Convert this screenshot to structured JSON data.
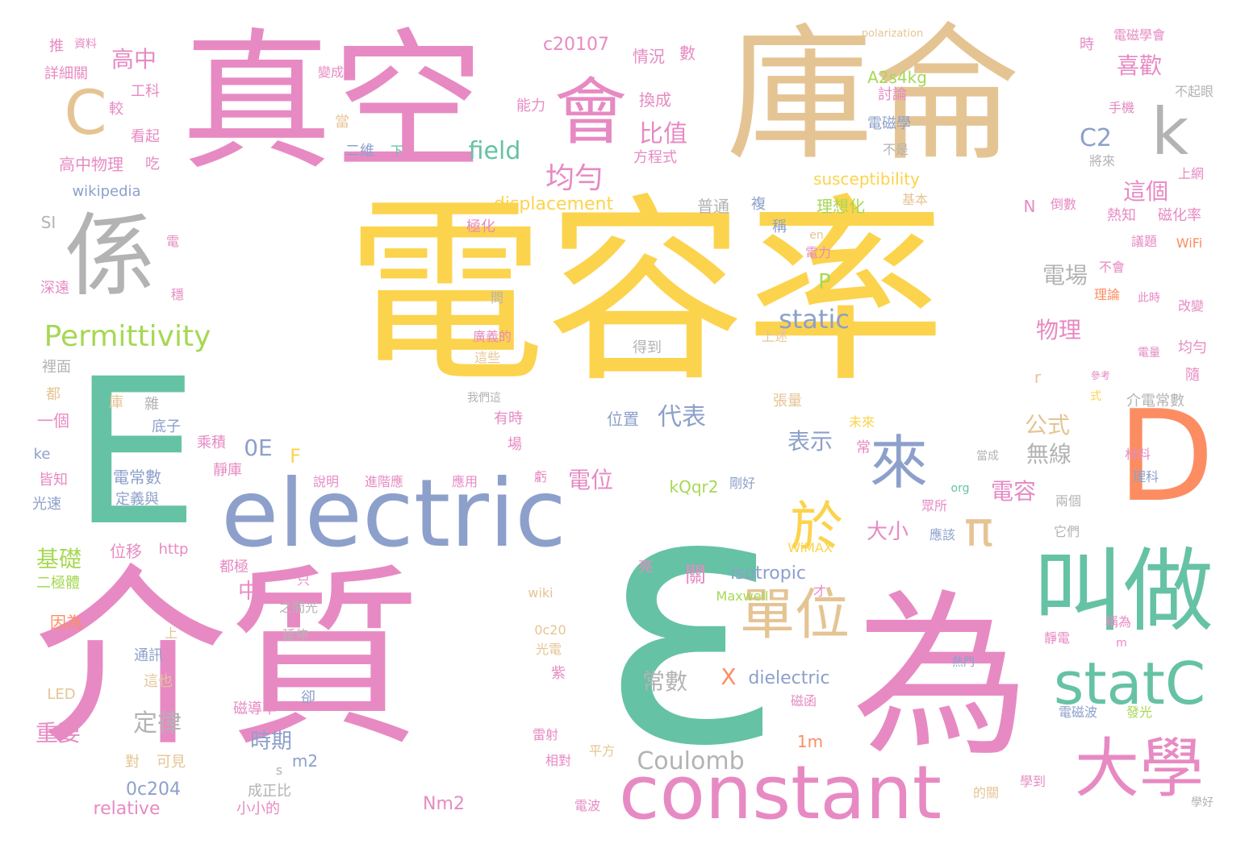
{
  "words": [
    {
      "text": "電容率",
      "color": "#fcd34d"
    },
    {
      "text": "ε",
      "color": "#66c2a5"
    },
    {
      "text": "介質",
      "color": "#e78ac3"
    },
    {
      "text": "真空",
      "color": "#e78ac3"
    },
    {
      "text": "庫侖",
      "color": "#e5c494"
    },
    {
      "text": "E",
      "color": "#66c2a5"
    },
    {
      "text": "electric",
      "color": "#8da0cb"
    },
    {
      "text": "為",
      "color": "#e78ac3"
    },
    {
      "text": "constant",
      "color": "#e78ac3"
    },
    {
      "text": "D",
      "color": "#fc8d62"
    },
    {
      "text": "係",
      "color": "#b3b3b3"
    },
    {
      "text": "叫做",
      "color": "#66c2a5"
    },
    {
      "text": "大學",
      "color": "#e78ac3"
    },
    {
      "text": "會",
      "color": "#e78ac3"
    },
    {
      "text": "statC",
      "color": "#66c2a5"
    },
    {
      "text": "於",
      "color": "#fcd34d"
    },
    {
      "text": "來",
      "color": "#8da0cb"
    },
    {
      "text": "單位",
      "color": "#e5c494"
    },
    {
      "text": "k",
      "color": "#b3b3b3"
    },
    {
      "text": "C",
      "color": "#e5c494"
    },
    {
      "text": "Permittivity",
      "color": "#a6d854"
    },
    {
      "text": "π",
      "color": "#e5c494"
    },
    {
      "text": "均勻",
      "color": "#e78ac3"
    },
    {
      "text": "比值",
      "color": "#e78ac3"
    },
    {
      "text": "field",
      "color": "#66c2a5"
    },
    {
      "text": "static",
      "color": "#8da0cb"
    },
    {
      "text": "Coulomb",
      "color": "#b3b3b3"
    },
    {
      "text": "代表",
      "color": "#8da0cb"
    },
    {
      "text": "位置",
      "color": "#8da0cb"
    },
    {
      "text": "高中",
      "color": "#e78ac3"
    },
    {
      "text": "喜歡",
      "color": "#e78ac3"
    },
    {
      "text": "C2",
      "color": "#8da0cb"
    },
    {
      "text": "這個",
      "color": "#e78ac3"
    },
    {
      "text": "物理",
      "color": "#e78ac3"
    },
    {
      "text": "電場",
      "color": "#b3b3b3"
    },
    {
      "text": "P",
      "color": "#a6d854"
    },
    {
      "text": "表示",
      "color": "#8da0cb"
    },
    {
      "text": "公式",
      "color": "#e5c494"
    },
    {
      "text": "無線",
      "color": "#b3b3b3"
    },
    {
      "text": "電容",
      "color": "#e78ac3"
    },
    {
      "text": "電位",
      "color": "#e78ac3"
    },
    {
      "text": "大小",
      "color": "#e78ac3"
    },
    {
      "text": "中",
      "color": "#e78ac3"
    },
    {
      "text": "關",
      "color": "#e78ac3"
    },
    {
      "text": "isotropic",
      "color": "#8da0cb"
    },
    {
      "text": "X",
      "color": "#fc8d62"
    },
    {
      "text": "dielectric",
      "color": "#8da0cb"
    },
    {
      "text": "常數",
      "color": "#b3b3b3"
    },
    {
      "text": "時期",
      "color": "#8da0cb"
    },
    {
      "text": "定律",
      "color": "#b3b3b3"
    },
    {
      "text": "重要",
      "color": "#e78ac3"
    },
    {
      "text": "基礎",
      "color": "#a6d854"
    },
    {
      "text": "0E",
      "color": "#8da0cb"
    },
    {
      "text": "F",
      "color": "#fcd34d"
    },
    {
      "text": "displacement",
      "color": "#fcd34d"
    },
    {
      "text": "susceptibility",
      "color": "#fcd34d"
    },
    {
      "text": "A2s4kg",
      "color": "#a6d854"
    },
    {
      "text": "c20107",
      "color": "#e78ac3"
    },
    {
      "text": "kQqr2",
      "color": "#a6d854"
    },
    {
      "text": "Nm2",
      "color": "#e78ac3"
    },
    {
      "text": "relative",
      "color": "#e78ac3"
    },
    {
      "text": "0c204",
      "color": "#8da0cb"
    },
    {
      "text": "m2",
      "color": "#8da0cb"
    },
    {
      "text": "1m",
      "color": "#fc8d62"
    },
    {
      "text": "wikipedia",
      "color": "#8da0cb"
    },
    {
      "text": "高中物理",
      "color": "#e78ac3"
    },
    {
      "text": "詳細關",
      "color": "#e78ac3"
    },
    {
      "text": "推",
      "color": "#e78ac3"
    },
    {
      "text": "資料",
      "color": "#e78ac3"
    },
    {
      "text": "工科",
      "color": "#e78ac3"
    },
    {
      "text": "較",
      "color": "#e78ac3"
    },
    {
      "text": "看起",
      "color": "#e78ac3"
    },
    {
      "text": "吃",
      "color": "#e78ac3"
    },
    {
      "text": "SI",
      "color": "#b3b3b3"
    },
    {
      "text": "深遠",
      "color": "#e78ac3"
    },
    {
      "text": "穩",
      "color": "#e78ac3"
    },
    {
      "text": "電",
      "color": "#e78ac3"
    },
    {
      "text": "裡面",
      "color": "#b3b3b3"
    },
    {
      "text": "都",
      "color": "#e5c494"
    },
    {
      "text": "庫",
      "color": "#e5c494"
    },
    {
      "text": "雜",
      "color": "#b3b3b3"
    },
    {
      "text": "一個",
      "color": "#e78ac3"
    },
    {
      "text": "底子",
      "color": "#8da0cb"
    },
    {
      "text": "乘積",
      "color": "#e78ac3"
    },
    {
      "text": "ke",
      "color": "#8da0cb"
    },
    {
      "text": "皆知",
      "color": "#e78ac3"
    },
    {
      "text": "光速",
      "color": "#8da0cb"
    },
    {
      "text": "電常數",
      "color": "#8da0cb"
    },
    {
      "text": "定義與",
      "color": "#8da0cb"
    },
    {
      "text": "靜庫",
      "color": "#e78ac3"
    },
    {
      "text": "位移",
      "color": "#e78ac3"
    },
    {
      "text": "http",
      "color": "#e78ac3"
    },
    {
      "text": "二極體",
      "color": "#a6d854"
    },
    {
      "text": "都極",
      "color": "#e78ac3"
    },
    {
      "text": "因為",
      "color": "#fc8d62"
    },
    {
      "text": "上",
      "color": "#e5c494"
    },
    {
      "text": "通訊",
      "color": "#8da0cb"
    },
    {
      "text": "這也",
      "color": "#e5c494"
    },
    {
      "text": "LED",
      "color": "#e5c494"
    },
    {
      "text": "磁導率",
      "color": "#e78ac3"
    },
    {
      "text": "卻",
      "color": "#8da0cb"
    },
    {
      "text": "對",
      "color": "#e5c494"
    },
    {
      "text": "可見",
      "color": "#e5c494"
    },
    {
      "text": "s",
      "color": "#b3b3b3"
    },
    {
      "text": "成正比",
      "color": "#b3b3b3"
    },
    {
      "text": "小小的",
      "color": "#e78ac3"
    },
    {
      "text": "變成",
      "color": "#e78ac3"
    },
    {
      "text": "能力",
      "color": "#e78ac3"
    },
    {
      "text": "當",
      "color": "#e5c494"
    },
    {
      "text": "二維",
      "color": "#8da0cb"
    },
    {
      "text": "下",
      "color": "#66c2a5"
    },
    {
      "text": "情況",
      "color": "#e78ac3"
    },
    {
      "text": "數",
      "color": "#e78ac3"
    },
    {
      "text": "換成",
      "color": "#e78ac3"
    },
    {
      "text": "方程式",
      "color": "#e78ac3"
    },
    {
      "text": "普通",
      "color": "#b3b3b3"
    },
    {
      "text": "複",
      "color": "#8da0cb"
    },
    {
      "text": "稱",
      "color": "#8da0cb"
    },
    {
      "text": "極化",
      "color": "#e78ac3"
    },
    {
      "text": "得到",
      "color": "#b3b3b3"
    },
    {
      "text": "問",
      "color": "#b3b3b3"
    },
    {
      "text": "廣義的",
      "color": "#e78ac3"
    },
    {
      "text": "這些",
      "color": "#e5c494"
    },
    {
      "text": "我們這",
      "color": "#b3b3b3"
    },
    {
      "text": "有時",
      "color": "#e78ac3"
    },
    {
      "text": "場",
      "color": "#e78ac3"
    },
    {
      "text": "說明",
      "color": "#e78ac3"
    },
    {
      "text": "進階應",
      "color": "#e78ac3"
    },
    {
      "text": "應用",
      "color": "#e78ac3"
    },
    {
      "text": "虧",
      "color": "#e78ac3"
    },
    {
      "text": "之間光",
      "color": "#b3b3b3"
    },
    {
      "text": "只",
      "color": "#e78ac3"
    },
    {
      "text": "亮",
      "color": "#e78ac3"
    },
    {
      "text": "延伸",
      "color": "#b3b3b3"
    },
    {
      "text": "wiki",
      "color": "#e5c494"
    },
    {
      "text": "0c20",
      "color": "#e5c494"
    },
    {
      "text": "光電",
      "color": "#e5c494"
    },
    {
      "text": "紫",
      "color": "#e78ac3"
    },
    {
      "text": "雷射",
      "color": "#e78ac3"
    },
    {
      "text": "相對",
      "color": "#e78ac3"
    },
    {
      "text": "平方",
      "color": "#e5c494"
    },
    {
      "text": "電波",
      "color": "#e78ac3"
    },
    {
      "text": "polarization",
      "color": "#e5c494"
    },
    {
      "text": "電磁學會",
      "color": "#e78ac3"
    },
    {
      "text": "時",
      "color": "#e78ac3"
    },
    {
      "text": "手機",
      "color": "#e78ac3"
    },
    {
      "text": "將來",
      "color": "#b3b3b3"
    },
    {
      "text": "不起眼",
      "color": "#b3b3b3"
    },
    {
      "text": "上網",
      "color": "#e78ac3"
    },
    {
      "text": "討論",
      "color": "#e78ac3"
    },
    {
      "text": "電磁學",
      "color": "#8da0cb"
    },
    {
      "text": "不是",
      "color": "#b3b3b3"
    },
    {
      "text": "基本",
      "color": "#e5c494"
    },
    {
      "text": "理想化",
      "color": "#a6d854"
    },
    {
      "text": "N",
      "color": "#e78ac3"
    },
    {
      "text": "倒數",
      "color": "#e78ac3"
    },
    {
      "text": "熱知",
      "color": "#e78ac3"
    },
    {
      "text": "磁化率",
      "color": "#e78ac3"
    },
    {
      "text": "議題",
      "color": "#e78ac3"
    },
    {
      "text": "WiFi",
      "color": "#fc8d62"
    },
    {
      "text": "en",
      "color": "#e5c494"
    },
    {
      "text": "電力",
      "color": "#e78ac3"
    },
    {
      "text": "不會",
      "color": "#e78ac3"
    },
    {
      "text": "理論",
      "color": "#fc8d62"
    },
    {
      "text": "此時",
      "color": "#e78ac3"
    },
    {
      "text": "改變",
      "color": "#e78ac3"
    },
    {
      "text": "上述",
      "color": "#e5c494"
    },
    {
      "text": "均勻",
      "color": "#e78ac3"
    },
    {
      "text": "電量",
      "color": "#e78ac3"
    },
    {
      "text": "隨",
      "color": "#e78ac3"
    },
    {
      "text": "參考",
      "color": "#e78ac3"
    },
    {
      "text": "介電常數",
      "color": "#b3b3b3"
    },
    {
      "text": "式",
      "color": "#fcd34d"
    },
    {
      "text": "r",
      "color": "#e5c494"
    },
    {
      "text": "張量",
      "color": "#e5c494"
    },
    {
      "text": "未來",
      "color": "#fcd34d"
    },
    {
      "text": "常",
      "color": "#e78ac3"
    },
    {
      "text": "材料",
      "color": "#e78ac3"
    },
    {
      "text": "理科",
      "color": "#8da0cb"
    },
    {
      "text": "當成",
      "color": "#b3b3b3"
    },
    {
      "text": "眾所",
      "color": "#e78ac3"
    },
    {
      "text": "org",
      "color": "#66c2a5"
    },
    {
      "text": "兩個",
      "color": "#b3b3b3"
    },
    {
      "text": "它們",
      "color": "#b3b3b3"
    },
    {
      "text": "應該",
      "color": "#8da0cb"
    },
    {
      "text": "WiMAX",
      "color": "#fcd34d"
    },
    {
      "text": "Maxwell",
      "color": "#a6d854"
    },
    {
      "text": "才",
      "color": "#e78ac3"
    },
    {
      "text": "剛好",
      "color": "#8da0cb"
    },
    {
      "text": "靜電",
      "color": "#e78ac3"
    },
    {
      "text": "稱為",
      "color": "#e78ac3"
    },
    {
      "text": "m",
      "color": "#e78ac3"
    },
    {
      "text": "熱門",
      "color": "#8da0cb"
    },
    {
      "text": "磁函",
      "color": "#e78ac3"
    },
    {
      "text": "電磁波",
      "color": "#8da0cb"
    },
    {
      "text": "發光",
      "color": "#a6d854"
    },
    {
      "text": "學到",
      "color": "#e78ac3"
    },
    {
      "text": "的關",
      "color": "#e5c494"
    },
    {
      "text": "學好",
      "color": "#b3b3b3"
    }
  ]
}
